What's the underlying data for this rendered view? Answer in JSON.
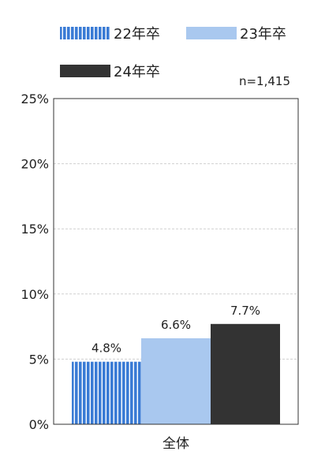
{
  "chart_data": {
    "type": "bar",
    "categories": [
      "全体"
    ],
    "series": [
      {
        "name": "22年卒",
        "values": [
          4.8
        ],
        "value_labels": [
          "4.8%"
        ],
        "color": "#3a7bd5",
        "pattern": "vertical-stripes"
      },
      {
        "name": "23年卒",
        "values": [
          6.6
        ],
        "value_labels": [
          "6.6%"
        ],
        "color": "#a9c8ef"
      },
      {
        "name": "24年卒",
        "values": [
          7.7
        ],
        "value_labels": [
          "7.7%"
        ],
        "color": "#333333"
      }
    ],
    "yticks": [
      "0%",
      "5%",
      "10%",
      "15%",
      "20%",
      "25%"
    ],
    "ylim": [
      0,
      25
    ],
    "ytick_values": [
      0,
      5,
      10,
      15,
      20,
      25
    ],
    "grid": true,
    "legend_position": "top",
    "annotation": "n=1,415"
  }
}
